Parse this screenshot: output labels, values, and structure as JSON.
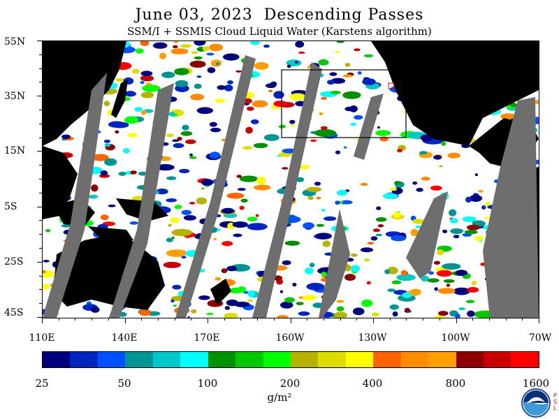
{
  "title": "June 03, 2023  Descending Passes",
  "subtitle": "SSM/I + SSMIS Cloud Liquid Water (Karstens algorithm)",
  "lat_labels": [
    "55N",
    "35N",
    "15N",
    "5S",
    "25S",
    "45S"
  ],
  "lon_labels": [
    "110E",
    "140E",
    "170E",
    "160W",
    "130W",
    "100W",
    "70W"
  ],
  "colorbar": {
    "colors": [
      "#00007f",
      "#0026bf",
      "#0050ff",
      "#009494",
      "#00c8c8",
      "#00ffff",
      "#009100",
      "#00c800",
      "#00ff00",
      "#b4b400",
      "#dcdc00",
      "#ffff00",
      "#ff6400",
      "#ff8c00",
      "#ffa000",
      "#8c0000",
      "#c80000",
      "#ff0000"
    ],
    "tick_labels": [
      "25",
      "50",
      "100",
      "200",
      "400",
      "800",
      "1600"
    ],
    "units": "g/m²"
  },
  "colors": {
    "land": "#000000",
    "ocean_clear": "#ffffff",
    "no_data_gap": "#6e6e6e"
  },
  "logo": {
    "name": "NOAA",
    "side_text": "PSL"
  }
}
